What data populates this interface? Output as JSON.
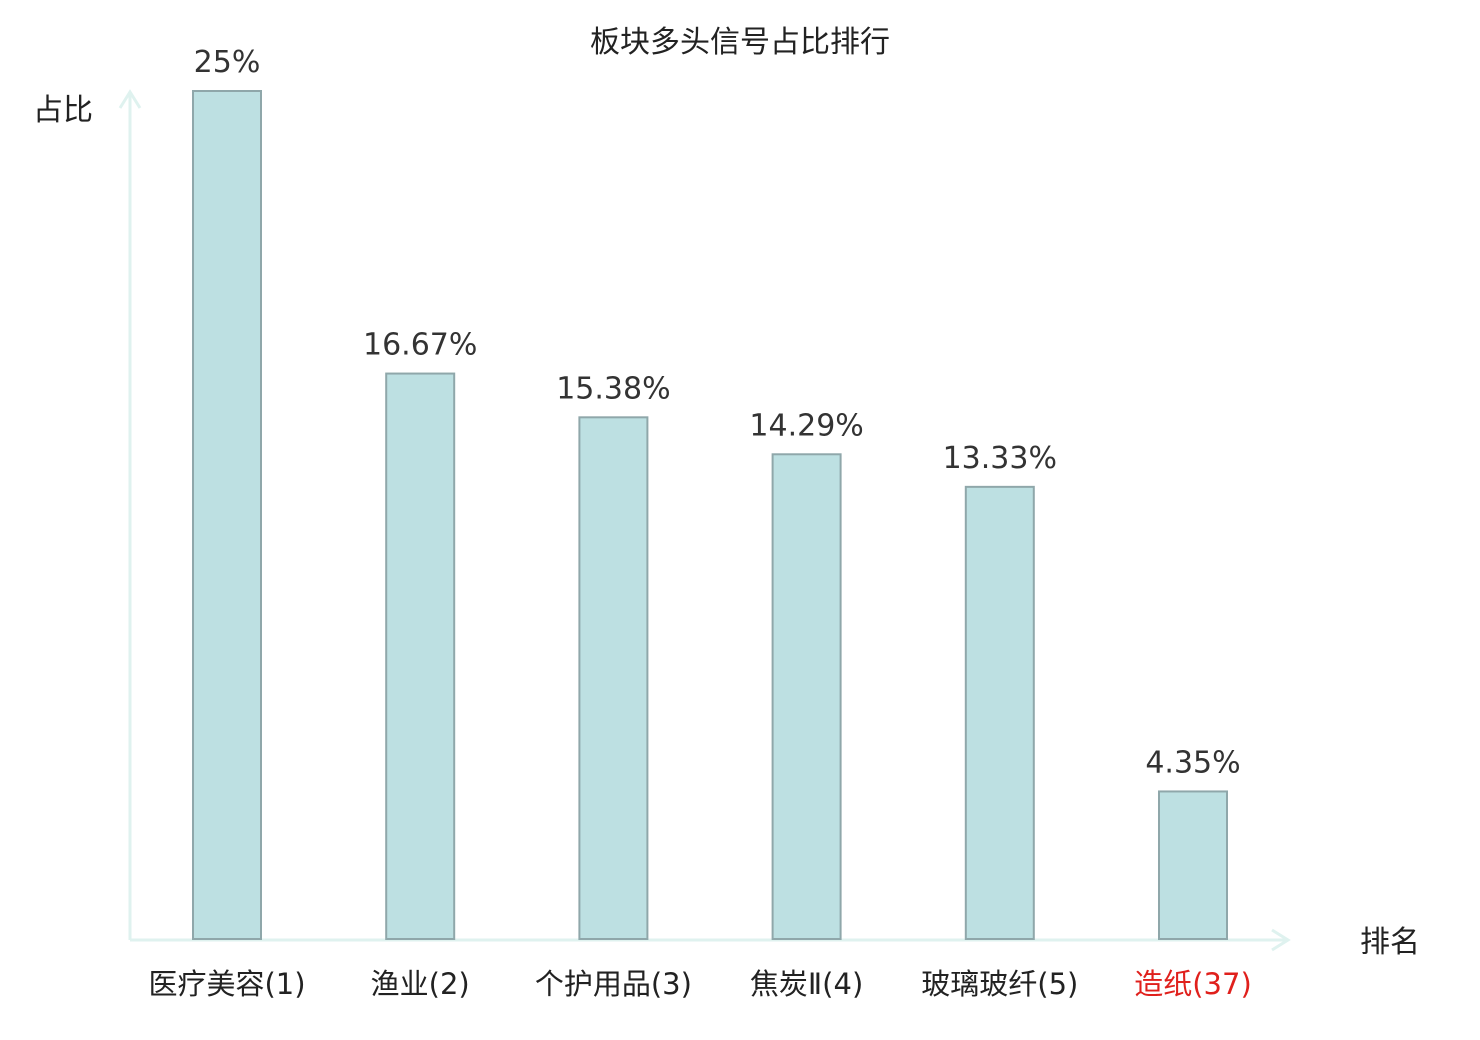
{
  "chart_data": {
    "type": "bar",
    "title": "板块多头信号占比排行",
    "ylabel": "占比",
    "xlabel": "排名",
    "categories": [
      "医疗美容(1)",
      "渔业(2)",
      "个护用品(3)",
      "焦炭Ⅱ(4)",
      "玻璃玻纤(5)",
      "造纸(37)"
    ],
    "values": [
      25,
      16.67,
      15.38,
      14.29,
      13.33,
      4.35
    ],
    "value_labels": [
      "25%",
      "16.67%",
      "15.38%",
      "14.29%",
      "13.33%",
      "4.35%"
    ],
    "highlight_index": 5,
    "ylim": [
      0,
      25
    ],
    "grid": false,
    "colors": {
      "bar_fill": "#bde0e2",
      "bar_stroke": "#8fa7aa",
      "axis": "#dff2ef",
      "label": "#222222",
      "highlight_label": "#e0201c"
    }
  }
}
